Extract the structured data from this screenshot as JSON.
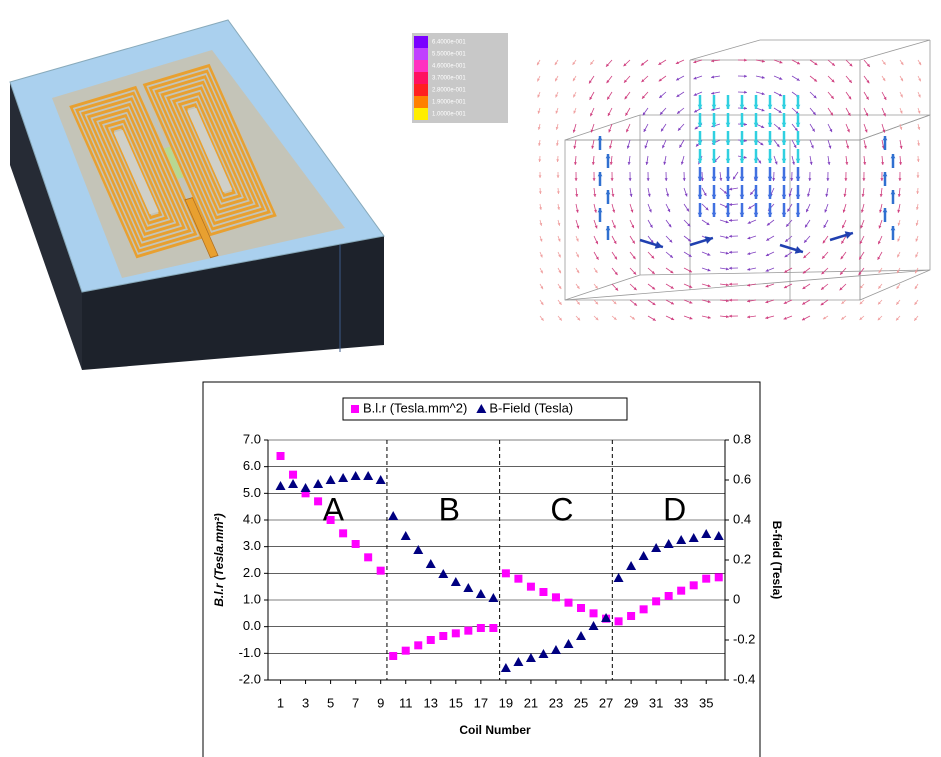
{
  "colorbar": {
    "labels": [
      "6.4000e-001",
      "5.5000e-001",
      "4.6000e-001",
      "3.7000e-001",
      "2.8000e-001",
      "1.9000e-001",
      "1.0000e-001"
    ],
    "colors": [
      "#7a00ff",
      "#c040ff",
      "#ff30c0",
      "#ff1060",
      "#ff2020",
      "#ff8000",
      "#ffee00"
    ]
  },
  "chart_data": {
    "type": "scatter",
    "x_label": "Coil Number",
    "y_label": "B.l.r  (Tesla.mm²)",
    "y2_label": "B-field (Tesla)",
    "x": [
      1,
      2,
      3,
      4,
      5,
      6,
      7,
      8,
      9,
      10,
      11,
      12,
      13,
      14,
      15,
      16,
      17,
      18,
      19,
      20,
      21,
      22,
      23,
      24,
      25,
      26,
      27,
      28,
      29,
      30,
      31,
      32,
      33,
      34,
      35,
      36
    ],
    "xlim": [
      0,
      36.5
    ],
    "xticks": [
      1,
      3,
      5,
      7,
      9,
      11,
      13,
      15,
      17,
      19,
      21,
      23,
      25,
      27,
      29,
      31,
      33,
      35
    ],
    "ylim": [
      -2,
      7
    ],
    "yticks": [
      {
        "value": -2,
        "label": "-2.0"
      },
      {
        "value": -1,
        "label": "-1.0"
      },
      {
        "value": 0,
        "label": "0.0"
      },
      {
        "value": 1,
        "label": "1.0"
      },
      {
        "value": 2,
        "label": "2.0"
      },
      {
        "value": 3,
        "label": "3.0"
      },
      {
        "value": 4,
        "label": "4.0"
      },
      {
        "value": 5,
        "label": "5.0"
      },
      {
        "value": 6,
        "label": "6.0"
      },
      {
        "value": 7,
        "label": "7.0"
      }
    ],
    "y2lim": [
      -0.4,
      0.8
    ],
    "y2ticks": [
      -0.4,
      -0.2,
      0,
      0.2,
      0.4,
      0.6,
      0.8
    ],
    "grid": true,
    "legend": "top",
    "dividers": [
      9.5,
      18.5,
      27.5
    ],
    "sections": [
      "A",
      "B",
      "C",
      "D"
    ],
    "series": [
      {
        "name": "B.l.r (Tesla.mm^2)",
        "color": "#ff00ff",
        "marker": "square",
        "axis": "y",
        "values": [
          6.4,
          5.7,
          5.0,
          4.7,
          4.0,
          3.5,
          3.1,
          2.6,
          2.1,
          -1.1,
          -0.9,
          -0.7,
          -0.5,
          -0.35,
          -0.25,
          -0.15,
          -0.05,
          -0.05,
          2.0,
          1.8,
          1.5,
          1.3,
          1.1,
          0.9,
          0.7,
          0.5,
          0.3,
          0.2,
          0.4,
          0.65,
          0.95,
          1.15,
          1.35,
          1.55,
          1.8,
          1.85
        ]
      },
      {
        "name": "B-Field (Tesla)",
        "color": "#000080",
        "marker": "triangle",
        "axis": "y2",
        "values": [
          0.57,
          0.58,
          0.56,
          0.58,
          0.6,
          0.61,
          0.62,
          0.62,
          0.6,
          0.42,
          0.32,
          0.25,
          0.18,
          0.13,
          0.09,
          0.06,
          0.03,
          0.01,
          -0.34,
          -0.31,
          -0.29,
          -0.27,
          -0.25,
          -0.22,
          -0.18,
          -0.13,
          -0.09,
          0.11,
          0.17,
          0.22,
          0.26,
          0.28,
          0.3,
          0.31,
          0.33,
          0.32
        ]
      }
    ]
  }
}
